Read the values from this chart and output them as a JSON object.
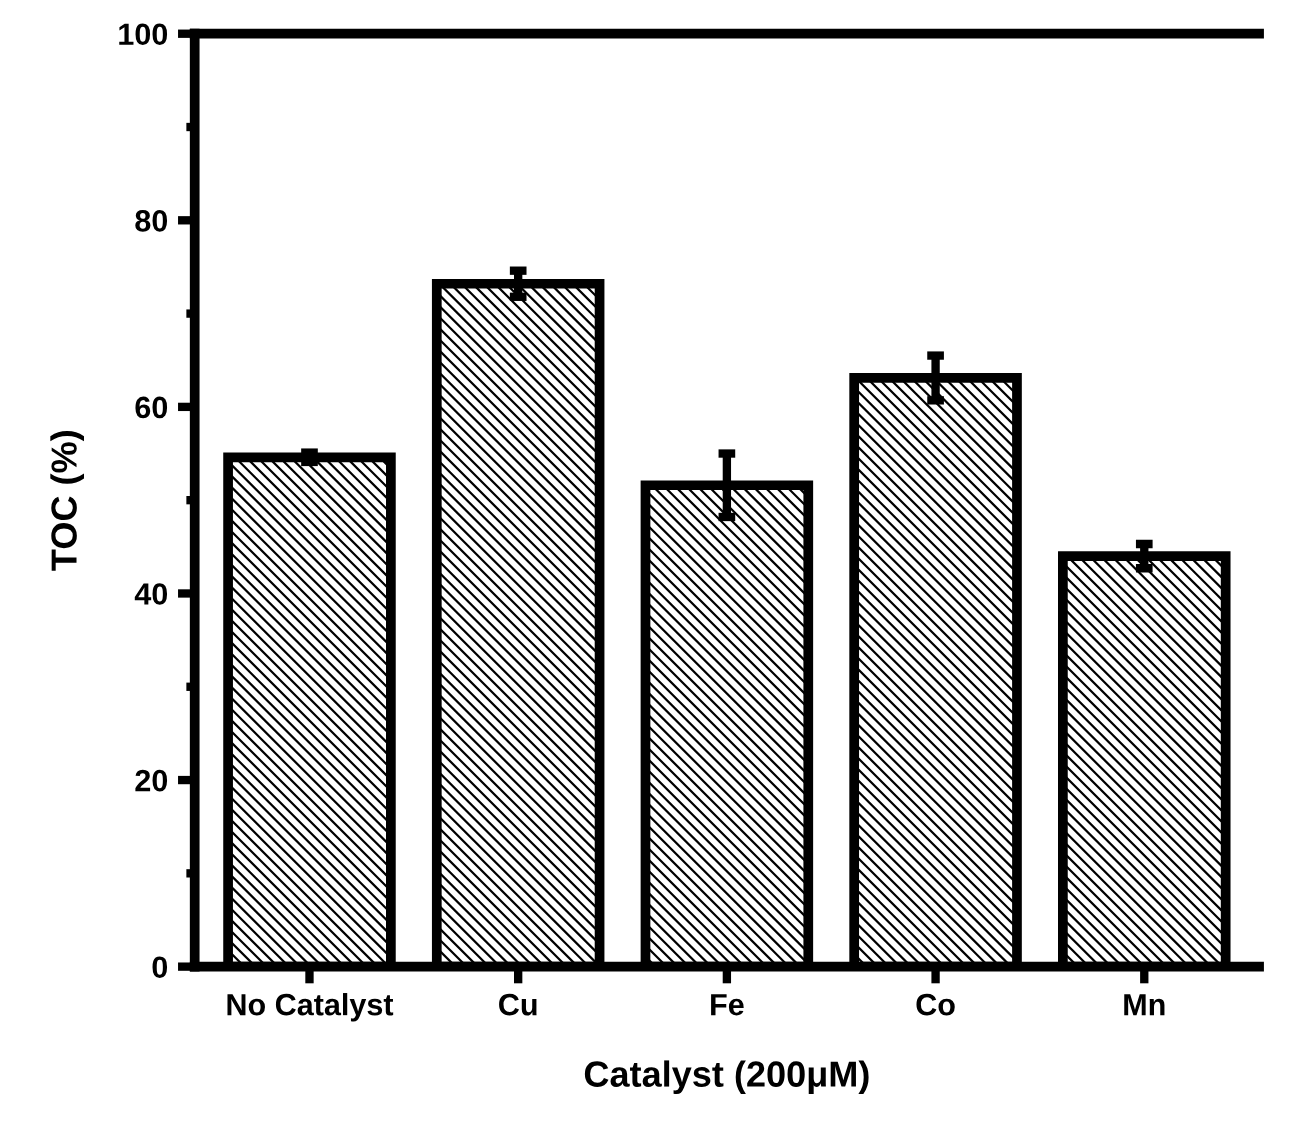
{
  "chart_data": {
    "type": "bar",
    "xlabel": "Catalyst (200μM)",
    "ylabel": "TOC (%)",
    "categories": [
      "No Catalyst",
      "Cu",
      "Fe",
      "Co",
      "Mn"
    ],
    "values": [
      54.6,
      73.2,
      51.6,
      63.1,
      44.0
    ],
    "errors": [
      0.5,
      1.4,
      3.4,
      2.4,
      1.3
    ],
    "color": "#000000",
    "ylim": [
      0,
      100
    ],
    "yticks": [
      0,
      {
        "value": 10,
        "label": null
      },
      20,
      {
        "value": 30,
        "label": null
      },
      40,
      {
        "value": 50,
        "label": null
      },
      60,
      {
        "value": 70,
        "label": null
      },
      80,
      {
        "value": 90,
        "label": null
      },
      100
    ],
    "grid": false
  }
}
